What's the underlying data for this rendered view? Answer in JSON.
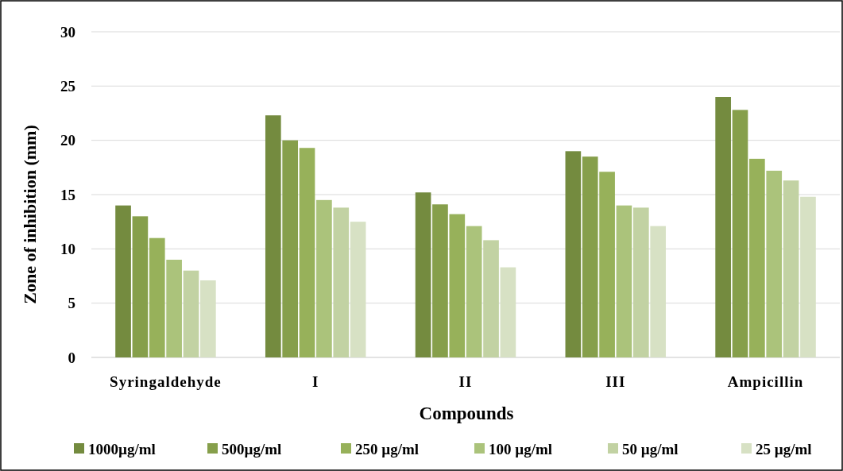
{
  "chart_data": {
    "type": "bar",
    "xlabel": "Compounds",
    "ylabel": "Zone of inhibition  (mm)",
    "categories": [
      "Syringaldehyde",
      "I",
      "II",
      "III",
      "Ampicillin"
    ],
    "series": [
      {
        "name": "1000µg/ml",
        "color": "#748b3f",
        "values": [
          14.0,
          22.3,
          15.2,
          19.0,
          24.0
        ]
      },
      {
        "name": "500µg/ml",
        "color": "#869f4b",
        "values": [
          13.0,
          20.0,
          14.1,
          18.5,
          22.8
        ]
      },
      {
        "name": "250 µg/ml",
        "color": "#97b15a",
        "values": [
          11.0,
          19.3,
          13.2,
          17.1,
          18.3
        ]
      },
      {
        "name": "100 µg/ml",
        "color": "#abc37b",
        "values": [
          9.0,
          14.5,
          12.1,
          14.0,
          17.2
        ]
      },
      {
        "name": "50 µg/ml",
        "color": "#c2d2a3",
        "values": [
          8.0,
          13.8,
          10.8,
          13.8,
          16.3
        ]
      },
      {
        "name": "25 µg/ml",
        "color": "#d7e1c4",
        "values": [
          7.1,
          12.5,
          8.3,
          12.1,
          14.8
        ]
      }
    ],
    "ylim": [
      0,
      30
    ],
    "yticks": [
      0,
      5,
      10,
      15,
      20,
      25,
      30
    ],
    "grid": "y",
    "legend": "bottom"
  }
}
